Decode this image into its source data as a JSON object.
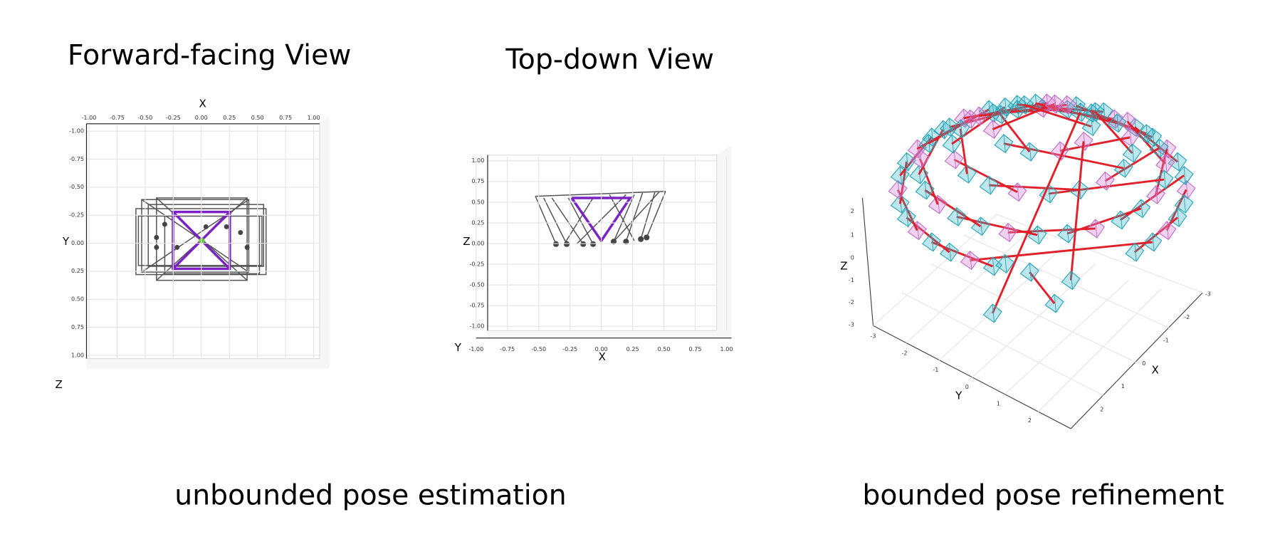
{
  "panels": [
    {
      "title": "Forward-facing View",
      "x_label": "X",
      "x_ticks": [
        "-1.00",
        "-0.75",
        "-0.50",
        "-0.25",
        "0.00",
        "0.25",
        "0.50",
        "0.75",
        "1.00"
      ],
      "y_label": "Y",
      "y_ticks": [
        "-1.00",
        "-0.75",
        "-0.50",
        "-0.25",
        "0.00",
        "0.25",
        "0.50",
        "0.75",
        "1.00"
      ],
      "z_label": "Z"
    },
    {
      "title": "Top-down View",
      "x_label": "X",
      "x_ticks": [
        "-1.00",
        "-0.75",
        "-0.50",
        "-0.25",
        "0.00",
        "0.25",
        "0.50",
        "0.75",
        "1.00"
      ],
      "z_label": "Z",
      "z_ticks": [
        "1.00",
        "0.75",
        "0.50",
        "0.25",
        "0.00",
        "-0.25",
        "-0.50",
        "-0.75",
        "-1.00"
      ],
      "y_label": "Y"
    },
    {
      "x_label": "X",
      "x_ticks": [
        "-3",
        "-2",
        "-1",
        "0",
        "1",
        "2"
      ],
      "y_label": "Y",
      "y_ticks": [
        "-3",
        "-2",
        "-1",
        "0",
        "1",
        "2"
      ],
      "z_label": "Z",
      "z_ticks": [
        "2",
        "1",
        "0",
        "-1",
        "-2",
        "-3"
      ]
    }
  ],
  "captions": [
    "unbounded pose estimation",
    "bounded pose refinement"
  ]
}
